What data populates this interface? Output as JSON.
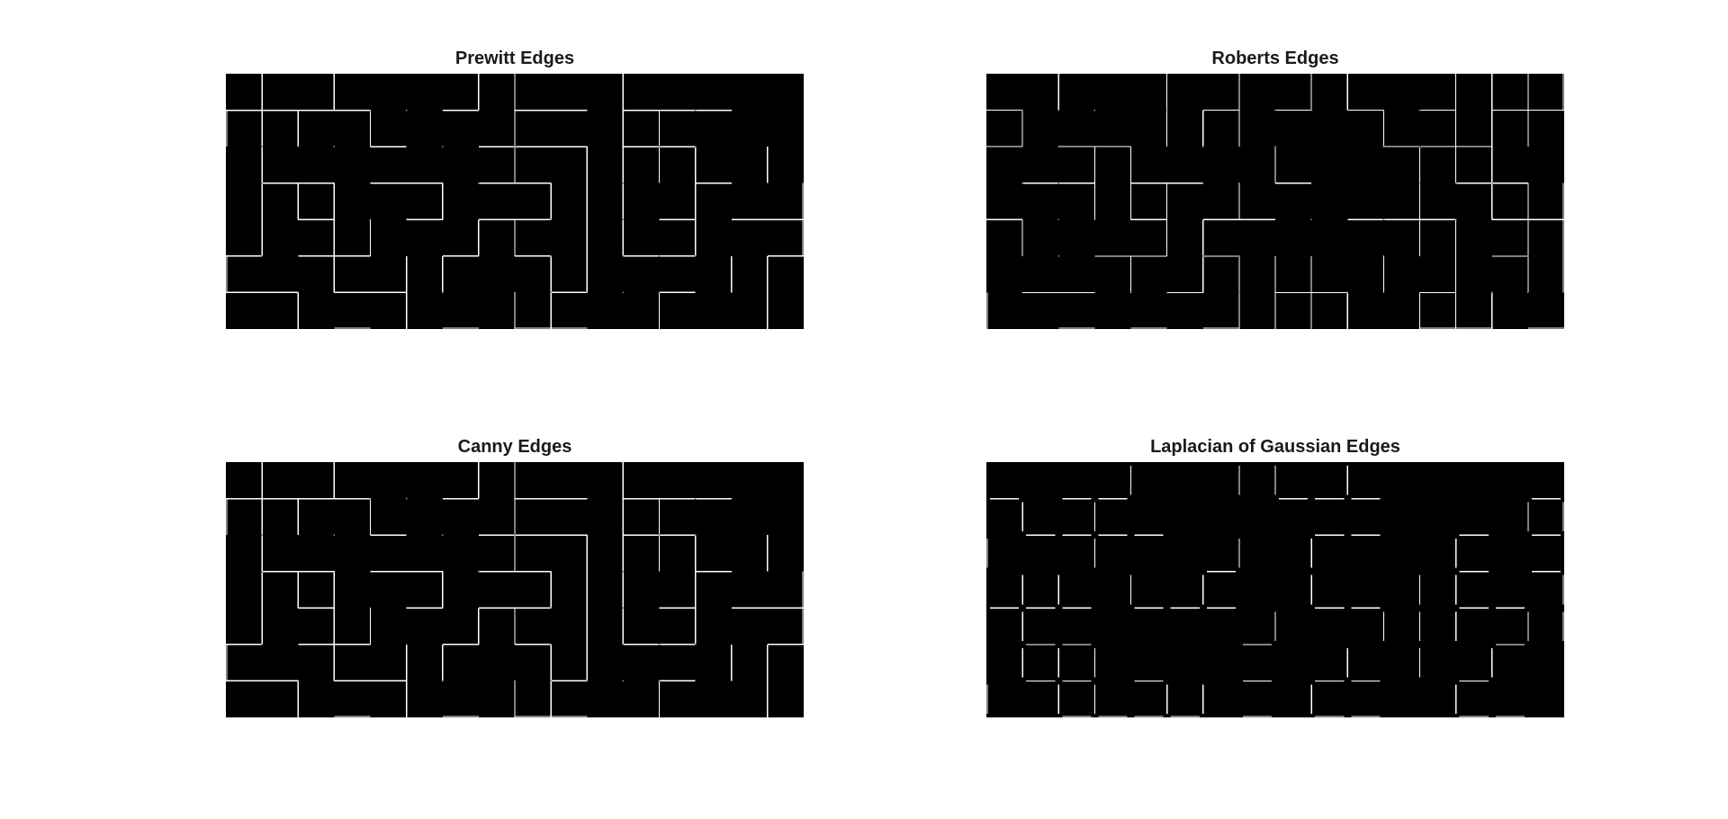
{
  "figure": {
    "background": "#ffffff",
    "image_background": "#000000",
    "edge_color": "#ffffff",
    "panels": [
      {
        "id": "prewitt",
        "title": "Prewitt Edges"
      },
      {
        "id": "roberts",
        "title": "Roberts Edges"
      },
      {
        "id": "canny",
        "title": "Canny Edges"
      },
      {
        "id": "laplacian",
        "title": "Laplacian of Gaussian Edges"
      }
    ]
  }
}
